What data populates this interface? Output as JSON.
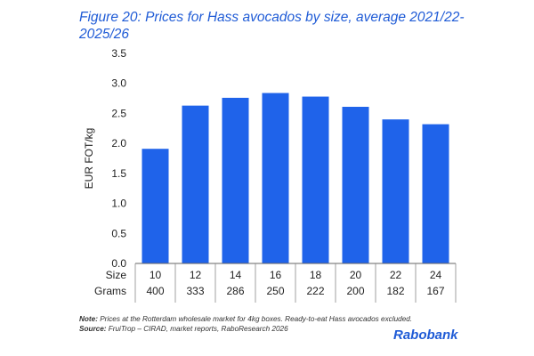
{
  "chart_data": {
    "type": "bar",
    "title": "Figure 20: Prices for Hass avocados by size, average 2021/22-2025/26",
    "ylabel": "EUR FOT/kg",
    "ylim": [
      0,
      3.5
    ],
    "yticks": [
      "0.0",
      "0.5",
      "1.0",
      "1.5",
      "2.0",
      "2.5",
      "3.0",
      "3.5"
    ],
    "row_labels": [
      "Size",
      "Grams"
    ],
    "categories": [
      "10",
      "12",
      "14",
      "16",
      "18",
      "20",
      "22",
      "24"
    ],
    "grams": [
      "400",
      "333",
      "286",
      "250",
      "222",
      "200",
      "182",
      "167"
    ],
    "values": [
      1.91,
      2.63,
      2.76,
      2.84,
      2.78,
      2.61,
      2.4,
      2.32
    ],
    "grid": false,
    "bar_color": "#1f63ea"
  },
  "note": {
    "note_label": "Note:",
    "note_text": "Prices at the Rotterdam wholesale market for 4kg boxes. Ready-to-eat Hass avocados excluded.",
    "source_label": "Source:",
    "source_text": "FruiTrop – CIRAD, market reports, RaboResearch 2026"
  },
  "brand": "Rabobank"
}
